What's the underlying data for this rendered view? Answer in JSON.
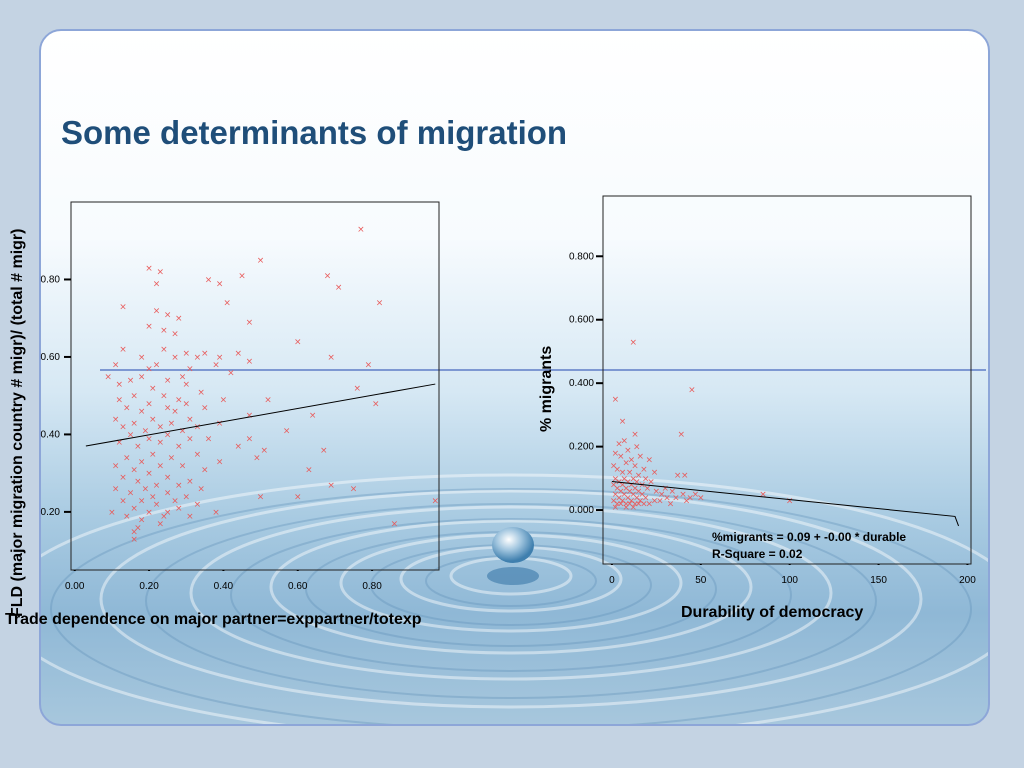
{
  "slide": {
    "title": "Some determinants of migration"
  },
  "chart_data": [
    {
      "type": "scatter",
      "title": "",
      "xlabel": "Trade dependence on major partner=exppartner/totexp",
      "ylabel": "FLD (major migration country # migr)/ (total # migr)",
      "xlim": [
        -0.01,
        0.98
      ],
      "ylim": [
        0.05,
        1.0
      ],
      "xticks": [
        "0.00",
        "0.20",
        "0.40",
        "0.60",
        "0.80"
      ],
      "yticks": [
        "0.20",
        "0.40",
        "0.60",
        "0.80"
      ],
      "marker": "x",
      "marker_color": "#e85a5a",
      "fit_line": {
        "x": [
          0.03,
          0.97
        ],
        "y": [
          0.37,
          0.53
        ]
      },
      "points": [
        [
          0.77,
          0.93
        ],
        [
          0.5,
          0.85
        ],
        [
          0.2,
          0.83
        ],
        [
          0.23,
          0.82
        ],
        [
          0.45,
          0.81
        ],
        [
          0.68,
          0.81
        ],
        [
          0.36,
          0.8
        ],
        [
          0.22,
          0.79
        ],
        [
          0.39,
          0.79
        ],
        [
          0.71,
          0.78
        ],
        [
          0.41,
          0.74
        ],
        [
          0.82,
          0.74
        ],
        [
          0.13,
          0.73
        ],
        [
          0.22,
          0.72
        ],
        [
          0.25,
          0.71
        ],
        [
          0.28,
          0.7
        ],
        [
          0.47,
          0.69
        ],
        [
          0.2,
          0.68
        ],
        [
          0.24,
          0.67
        ],
        [
          0.27,
          0.66
        ],
        [
          0.6,
          0.64
        ],
        [
          0.13,
          0.62
        ],
        [
          0.24,
          0.62
        ],
        [
          0.3,
          0.61
        ],
        [
          0.35,
          0.61
        ],
        [
          0.44,
          0.61
        ],
        [
          0.18,
          0.6
        ],
        [
          0.27,
          0.6
        ],
        [
          0.33,
          0.6
        ],
        [
          0.39,
          0.6
        ],
        [
          0.69,
          0.6
        ],
        [
          0.47,
          0.59
        ],
        [
          0.11,
          0.58
        ],
        [
          0.22,
          0.58
        ],
        [
          0.38,
          0.58
        ],
        [
          0.79,
          0.58
        ],
        [
          0.2,
          0.57
        ],
        [
          0.31,
          0.57
        ],
        [
          0.42,
          0.56
        ],
        [
          0.09,
          0.55
        ],
        [
          0.18,
          0.55
        ],
        [
          0.29,
          0.55
        ],
        [
          0.15,
          0.54
        ],
        [
          0.25,
          0.54
        ],
        [
          0.12,
          0.53
        ],
        [
          0.3,
          0.53
        ],
        [
          0.21,
          0.52
        ],
        [
          0.76,
          0.52
        ],
        [
          0.34,
          0.51
        ],
        [
          0.16,
          0.5
        ],
        [
          0.24,
          0.5
        ],
        [
          0.12,
          0.49
        ],
        [
          0.28,
          0.49
        ],
        [
          0.4,
          0.49
        ],
        [
          0.52,
          0.49
        ],
        [
          0.2,
          0.48
        ],
        [
          0.3,
          0.48
        ],
        [
          0.81,
          0.48
        ],
        [
          0.14,
          0.47
        ],
        [
          0.25,
          0.47
        ],
        [
          0.35,
          0.47
        ],
        [
          0.18,
          0.46
        ],
        [
          0.27,
          0.46
        ],
        [
          0.47,
          0.45
        ],
        [
          0.64,
          0.45
        ],
        [
          0.11,
          0.44
        ],
        [
          0.21,
          0.44
        ],
        [
          0.31,
          0.44
        ],
        [
          0.16,
          0.43
        ],
        [
          0.26,
          0.43
        ],
        [
          0.39,
          0.43
        ],
        [
          0.13,
          0.42
        ],
        [
          0.23,
          0.42
        ],
        [
          0.33,
          0.42
        ],
        [
          0.19,
          0.41
        ],
        [
          0.29,
          0.41
        ],
        [
          0.57,
          0.41
        ],
        [
          0.15,
          0.4
        ],
        [
          0.25,
          0.4
        ],
        [
          0.2,
          0.39
        ],
        [
          0.31,
          0.39
        ],
        [
          0.36,
          0.39
        ],
        [
          0.47,
          0.39
        ],
        [
          0.12,
          0.38
        ],
        [
          0.23,
          0.38
        ],
        [
          0.17,
          0.37
        ],
        [
          0.28,
          0.37
        ],
        [
          0.44,
          0.37
        ],
        [
          0.51,
          0.36
        ],
        [
          0.67,
          0.36
        ],
        [
          0.21,
          0.35
        ],
        [
          0.33,
          0.35
        ],
        [
          0.14,
          0.34
        ],
        [
          0.26,
          0.34
        ],
        [
          0.49,
          0.34
        ],
        [
          0.18,
          0.33
        ],
        [
          0.39,
          0.33
        ],
        [
          0.11,
          0.32
        ],
        [
          0.23,
          0.32
        ],
        [
          0.29,
          0.32
        ],
        [
          0.16,
          0.31
        ],
        [
          0.35,
          0.31
        ],
        [
          0.63,
          0.31
        ],
        [
          0.2,
          0.3
        ],
        [
          0.13,
          0.29
        ],
        [
          0.25,
          0.29
        ],
        [
          0.17,
          0.28
        ],
        [
          0.31,
          0.28
        ],
        [
          0.22,
          0.27
        ],
        [
          0.28,
          0.27
        ],
        [
          0.69,
          0.27
        ],
        [
          0.11,
          0.26
        ],
        [
          0.19,
          0.26
        ],
        [
          0.34,
          0.26
        ],
        [
          0.75,
          0.26
        ],
        [
          0.15,
          0.25
        ],
        [
          0.25,
          0.25
        ],
        [
          0.21,
          0.24
        ],
        [
          0.3,
          0.24
        ],
        [
          0.5,
          0.24
        ],
        [
          0.6,
          0.24
        ],
        [
          0.13,
          0.23
        ],
        [
          0.18,
          0.23
        ],
        [
          0.27,
          0.23
        ],
        [
          0.97,
          0.23
        ],
        [
          0.22,
          0.22
        ],
        [
          0.33,
          0.22
        ],
        [
          0.16,
          0.21
        ],
        [
          0.28,
          0.21
        ],
        [
          0.1,
          0.2
        ],
        [
          0.2,
          0.2
        ],
        [
          0.25,
          0.2
        ],
        [
          0.38,
          0.2
        ],
        [
          0.14,
          0.19
        ],
        [
          0.24,
          0.19
        ],
        [
          0.31,
          0.19
        ],
        [
          0.18,
          0.18
        ],
        [
          0.23,
          0.17
        ],
        [
          0.86,
          0.17
        ],
        [
          0.17,
          0.16
        ],
        [
          0.16,
          0.15
        ],
        [
          0.16,
          0.13
        ]
      ]
    },
    {
      "type": "scatter",
      "title": "",
      "xlabel": "Durability of democracy",
      "ylabel": "% migrants",
      "xlim": [
        -5,
        202
      ],
      "ylim": [
        -0.17,
        0.99
      ],
      "xticks": [
        "0",
        "50",
        "100",
        "150",
        "200"
      ],
      "yticks": [
        "0.000",
        "0.200",
        "0.400",
        "0.600",
        "0.800"
      ],
      "marker": "x",
      "marker_color": "#e85a5a",
      "fit_line": {
        "x": [
          0,
          193
        ],
        "y": [
          0.09,
          -0.02
        ],
        "hook_end": [
          195,
          -0.05
        ]
      },
      "annotations": [
        "%migrants = 0.09 + -0.00 * durable",
        "R-Square = 0.02"
      ],
      "points": [
        [
          12,
          0.53
        ],
        [
          45,
          0.38
        ],
        [
          2,
          0.35
        ],
        [
          39,
          0.24
        ],
        [
          6,
          0.28
        ],
        [
          13,
          0.24
        ],
        [
          7,
          0.22
        ],
        [
          4,
          0.21
        ],
        [
          14,
          0.2
        ],
        [
          9,
          0.19
        ],
        [
          2,
          0.18
        ],
        [
          16,
          0.17
        ],
        [
          5,
          0.17
        ],
        [
          11,
          0.16
        ],
        [
          21,
          0.16
        ],
        [
          8,
          0.15
        ],
        [
          1,
          0.14
        ],
        [
          13,
          0.14
        ],
        [
          3,
          0.13
        ],
        [
          18,
          0.13
        ],
        [
          6,
          0.12
        ],
        [
          10,
          0.12
        ],
        [
          15,
          0.11
        ],
        [
          24,
          0.12
        ],
        [
          37,
          0.11
        ],
        [
          41,
          0.11
        ],
        [
          2,
          0.1
        ],
        [
          7,
          0.1
        ],
        [
          12,
          0.1
        ],
        [
          19,
          0.1
        ],
        [
          4,
          0.09
        ],
        [
          9,
          0.09
        ],
        [
          14,
          0.09
        ],
        [
          22,
          0.09
        ],
        [
          1,
          0.08
        ],
        [
          6,
          0.08
        ],
        [
          11,
          0.08
        ],
        [
          17,
          0.08
        ],
        [
          3,
          0.07
        ],
        [
          8,
          0.07
        ],
        [
          13,
          0.07
        ],
        [
          20,
          0.07
        ],
        [
          30,
          0.07
        ],
        [
          5,
          0.06
        ],
        [
          10,
          0.06
        ],
        [
          15,
          0.06
        ],
        [
          25,
          0.06
        ],
        [
          34,
          0.06
        ],
        [
          2,
          0.05
        ],
        [
          7,
          0.05
        ],
        [
          12,
          0.05
        ],
        [
          17,
          0.05
        ],
        [
          28,
          0.05
        ],
        [
          40,
          0.05
        ],
        [
          4,
          0.04
        ],
        [
          9,
          0.04
        ],
        [
          14,
          0.04
        ],
        [
          19,
          0.04
        ],
        [
          31,
          0.04
        ],
        [
          47,
          0.05
        ],
        [
          1,
          0.03
        ],
        [
          6,
          0.03
        ],
        [
          11,
          0.03
        ],
        [
          16,
          0.03
        ],
        [
          24,
          0.03
        ],
        [
          36,
          0.04
        ],
        [
          44,
          0.04
        ],
        [
          3,
          0.02
        ],
        [
          8,
          0.02
        ],
        [
          13,
          0.02
        ],
        [
          18,
          0.02
        ],
        [
          27,
          0.03
        ],
        [
          50,
          0.04
        ],
        [
          5,
          0.02
        ],
        [
          10,
          0.02
        ],
        [
          21,
          0.02
        ],
        [
          2,
          0.01
        ],
        [
          15,
          0.02
        ],
        [
          42,
          0.03
        ],
        [
          33,
          0.02
        ],
        [
          85,
          0.05
        ],
        [
          100,
          0.03
        ],
        [
          8,
          0.01
        ],
        [
          12,
          0.01
        ]
      ]
    }
  ]
}
